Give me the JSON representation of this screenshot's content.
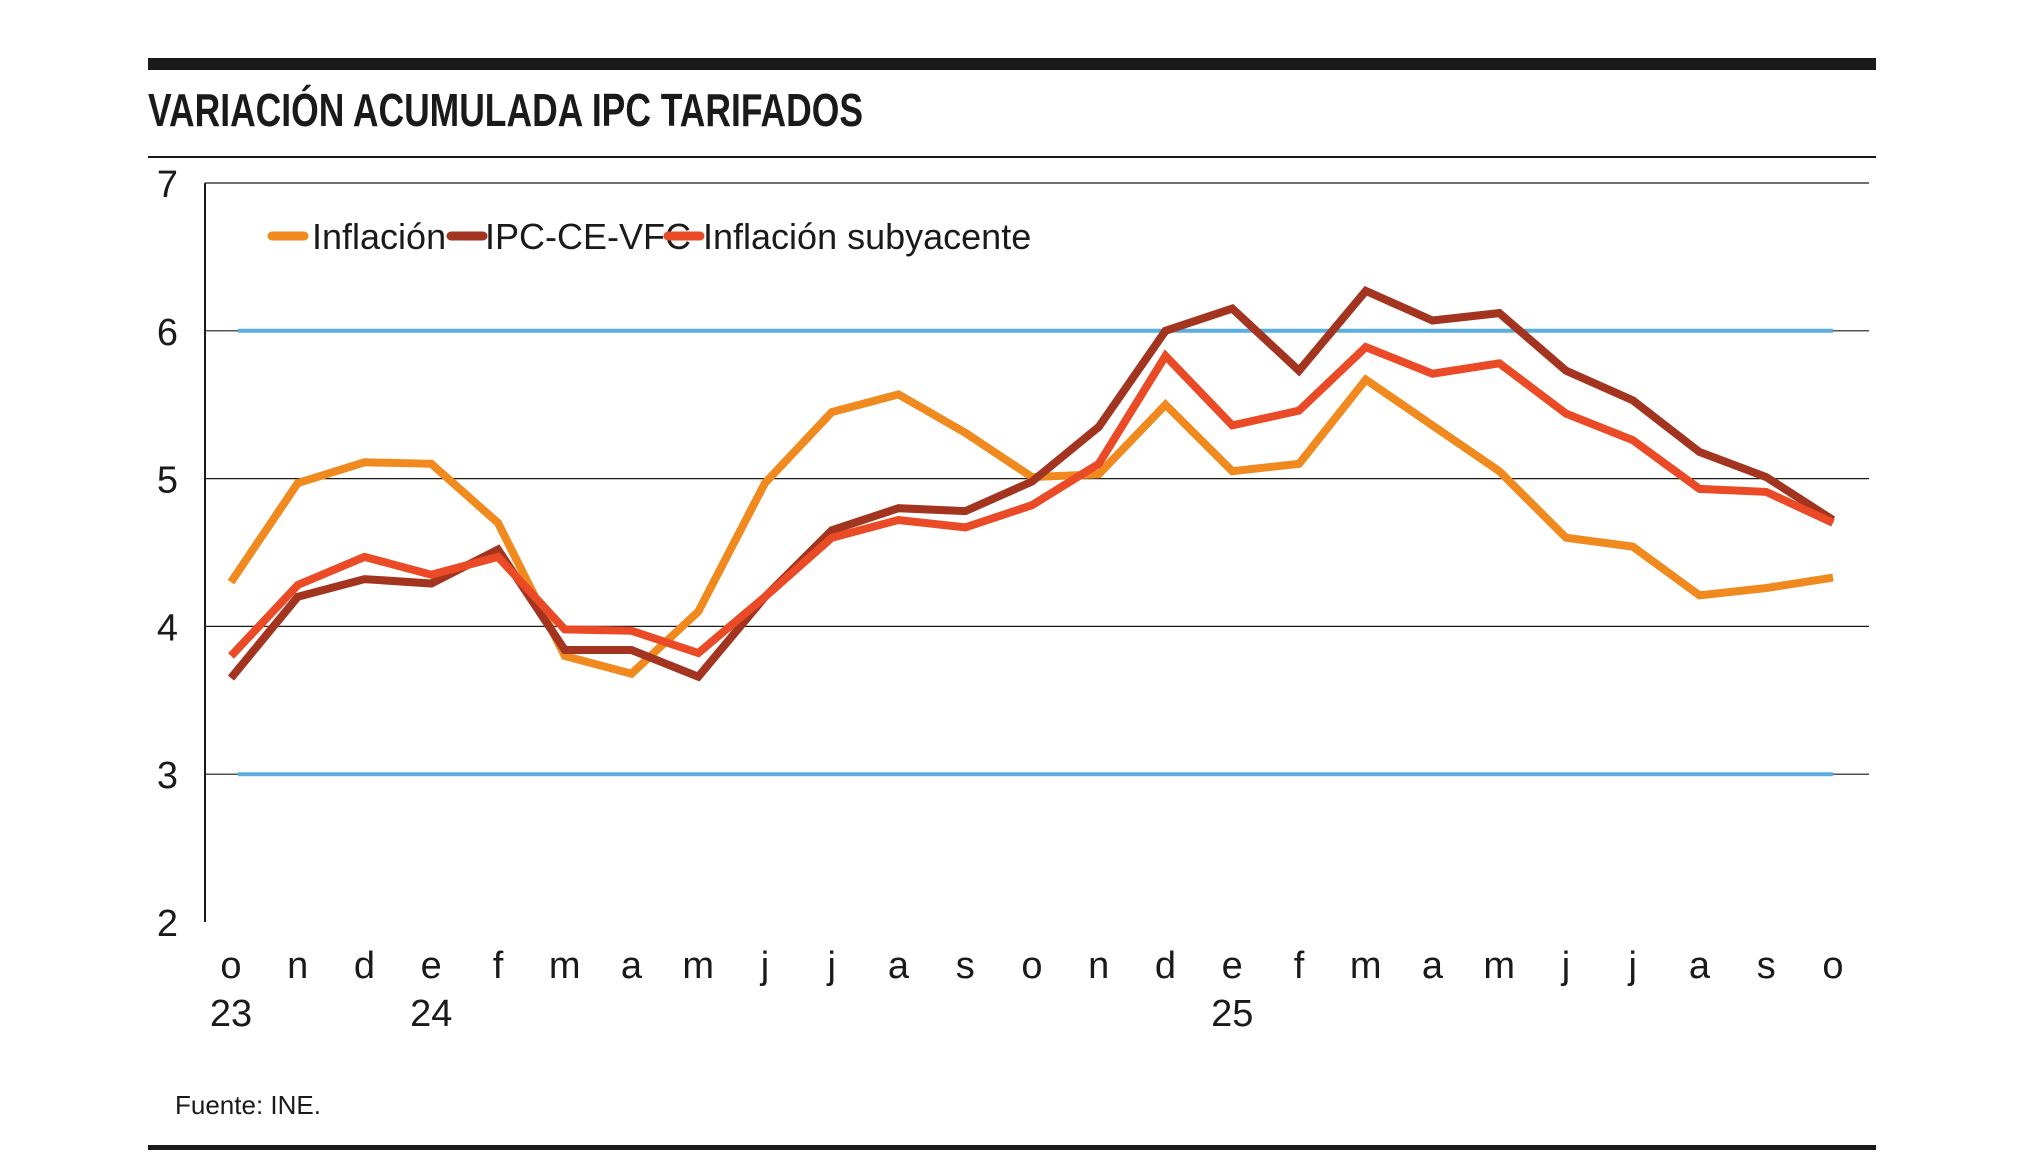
{
  "chart_data": {
    "type": "line",
    "title": "VARIACIÓN ACUMULADA IPC TARIFADOS",
    "source": "Fuente: INE.",
    "xlabel": "",
    "ylabel": "",
    "ylim": [
      2,
      7
    ],
    "yticks": [
      "2",
      "3",
      "4",
      "5",
      "6",
      "7"
    ],
    "x_months": [
      "o",
      "n",
      "d",
      "e",
      "f",
      "m",
      "a",
      "m",
      "j",
      "j",
      "a",
      "s",
      "o",
      "n",
      "d",
      "e",
      "f",
      "m",
      "a",
      "m",
      "j",
      "j",
      "a",
      "s",
      "o"
    ],
    "x_years": [
      {
        "index": 0,
        "label": "23"
      },
      {
        "index": 3,
        "label": "24"
      },
      {
        "index": 15,
        "label": "25"
      }
    ],
    "reference_lines": {
      "values": [
        6,
        3
      ],
      "color": "#5aaee0"
    },
    "grid": true,
    "legend_position": "top-left",
    "series": [
      {
        "name": "Inflación",
        "color": "#f08a1e",
        "values": [
          4.3,
          4.97,
          5.11,
          5.1,
          4.7,
          3.8,
          3.68,
          4.1,
          4.97,
          5.45,
          5.57,
          5.31,
          5.01,
          5.03,
          5.5,
          5.05,
          5.1,
          5.67,
          5.36,
          5.05,
          4.6,
          4.54,
          4.21,
          4.26,
          4.33
        ]
      },
      {
        "name": "IPC-CE-VFC",
        "color": "#a3341f",
        "values": [
          3.65,
          4.2,
          4.32,
          4.29,
          4.52,
          3.84,
          3.84,
          3.66,
          4.2,
          4.65,
          4.8,
          4.78,
          4.98,
          5.35,
          6.0,
          6.15,
          5.73,
          6.27,
          6.07,
          6.12,
          5.73,
          5.53,
          5.18,
          5.01,
          4.72
        ]
      },
      {
        "name": "Inflación subyacente",
        "color": "#ea4a25",
        "values": [
          3.8,
          4.28,
          4.47,
          4.35,
          4.47,
          3.98,
          3.97,
          3.82,
          4.2,
          4.6,
          4.72,
          4.67,
          4.82,
          5.1,
          5.83,
          5.36,
          5.46,
          5.89,
          5.71,
          5.78,
          5.44,
          5.26,
          4.93,
          4.91,
          4.7
        ]
      }
    ]
  }
}
